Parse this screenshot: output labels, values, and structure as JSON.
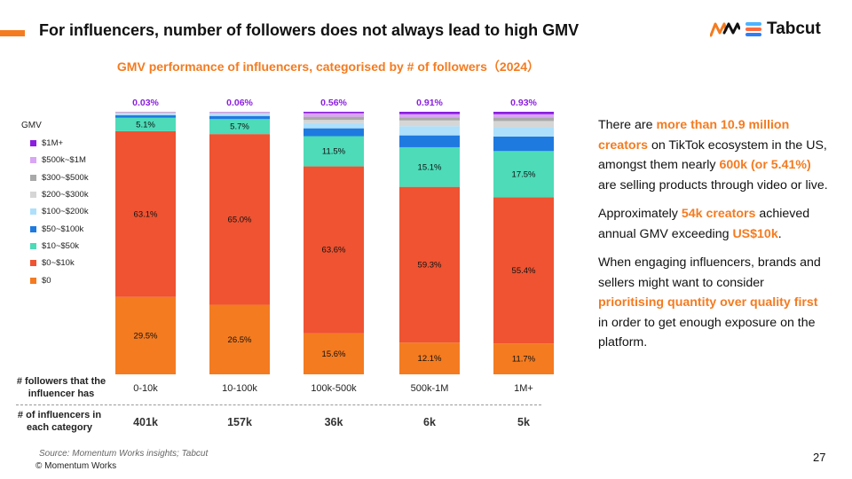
{
  "slide": {
    "title": "For influencers, number of followers does not always lead to high GMV",
    "page_number": "27",
    "source": "Source: Momentum Works insights; Tabcut",
    "copyright": "© Momentum Works",
    "logo_text": "Tabcut",
    "accent_color": "#f47b20"
  },
  "row_labels": {
    "followers": "# followers that the influencer has",
    "influencers": "# of influencers in each category"
  },
  "body": {
    "p1_a": "There are ",
    "p1_b": "more than 10.9 million creators",
    "p1_c": " on TikTok ecosystem in the US, amongst them nearly ",
    "p1_d": "600k (or 5.41%)",
    "p1_e": " are selling products through video or live.",
    "p2_a": "Approximately ",
    "p2_b": "54k creators",
    "p2_c": " achieved annual GMV exceeding ",
    "p2_d": "US$10k",
    "p2_e": ".",
    "p3_a": "When engaging influencers, brands and sellers might want to consider ",
    "p3_b": "prioritising quantity over quality first",
    "p3_c": " in order to get enough exposure on the platform."
  },
  "chart_data": {
    "type": "bar",
    "stacked": true,
    "title": "GMV performance of influencers, categorised by # of followers（2024）",
    "legend_title": "GMV",
    "categories": [
      "0-10k",
      "10-100k",
      "100k-500k",
      "500k-1M",
      "1M+"
    ],
    "influencer_counts": [
      "401k",
      "157k",
      "36k",
      "6k",
      "5k"
    ],
    "top_labels": [
      "0.03%",
      "0.06%",
      "0.56%",
      "0.91%",
      "0.93%"
    ],
    "ylim": [
      0,
      100
    ],
    "series": [
      {
        "name": "$0",
        "color": "#f47b20",
        "values": [
          29.5,
          26.5,
          15.6,
          12.1,
          11.7
        ],
        "labels": [
          "29.5%",
          "26.5%",
          "15.6%",
          "12.1%",
          "11.7%"
        ]
      },
      {
        "name": "$0~$10k",
        "color": "#ef5331",
        "values": [
          63.1,
          65.0,
          63.6,
          59.3,
          55.4
        ],
        "labels": [
          "63.1%",
          "65.0%",
          "63.6%",
          "59.3%",
          "55.4%"
        ]
      },
      {
        "name": "$10~$50k",
        "color": "#4ddbb8",
        "values": [
          5.1,
          5.7,
          11.5,
          15.1,
          17.5
        ],
        "labels": [
          "5.1%",
          "5.7%",
          "11.5%",
          "15.1%",
          "17.5%"
        ]
      },
      {
        "name": "$50~$100k",
        "color": "#1f7ae0",
        "values": [
          1.0,
          1.2,
          3.0,
          4.5,
          5.5
        ],
        "labels": [
          "",
          "",
          "",
          "",
          ""
        ]
      },
      {
        "name": "$100~$200k",
        "color": "#aee0fb",
        "values": [
          0.6,
          0.7,
          2.0,
          3.5,
          3.5
        ],
        "labels": [
          "",
          "",
          "",
          "",
          ""
        ]
      },
      {
        "name": "$200~$300k",
        "color": "#d6d6d6",
        "values": [
          0.3,
          0.4,
          1.2,
          2.2,
          2.4
        ],
        "labels": [
          "",
          "",
          "",
          "",
          ""
        ]
      },
      {
        "name": "$300~$500k",
        "color": "#a9a9a9",
        "values": [
          0.2,
          0.2,
          1.2,
          1.2,
          1.4
        ],
        "labels": [
          "",
          "",
          "",
          "",
          ""
        ]
      },
      {
        "name": "$500k~$1M",
        "color": "#d9a5f5",
        "values": [
          0.17,
          0.24,
          1.34,
          1.19,
          1.17
        ],
        "labels": [
          "",
          "",
          "",
          "",
          ""
        ]
      },
      {
        "name": "$1M+",
        "color": "#8b1ee0",
        "values": [
          0.03,
          0.06,
          0.56,
          0.91,
          0.93
        ],
        "labels": [
          "",
          "",
          "",
          "",
          ""
        ]
      }
    ]
  }
}
